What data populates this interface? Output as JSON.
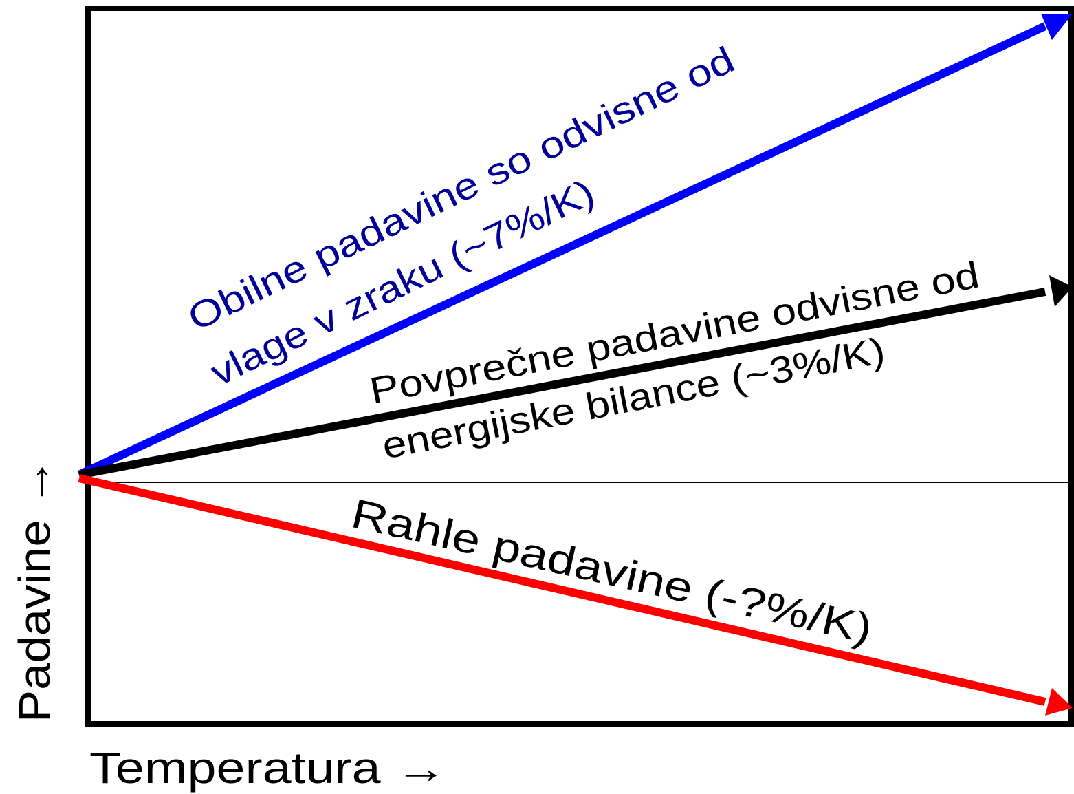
{
  "arrows": [
    {
      "lines": [
        "Obilne padavine so odvisne od",
        "vlage v zraku (~7%/K)"
      ]
    },
    {
      "lines": [
        "Povprečne padavine odvisne od",
        "energijske bilance (~3%/K)"
      ]
    },
    {
      "lines": [
        "Rahle padavine (-?%/K)"
      ]
    }
  ],
  "x_axis_label": "Temperatura →",
  "y_axis_label": "Padavine →"
}
